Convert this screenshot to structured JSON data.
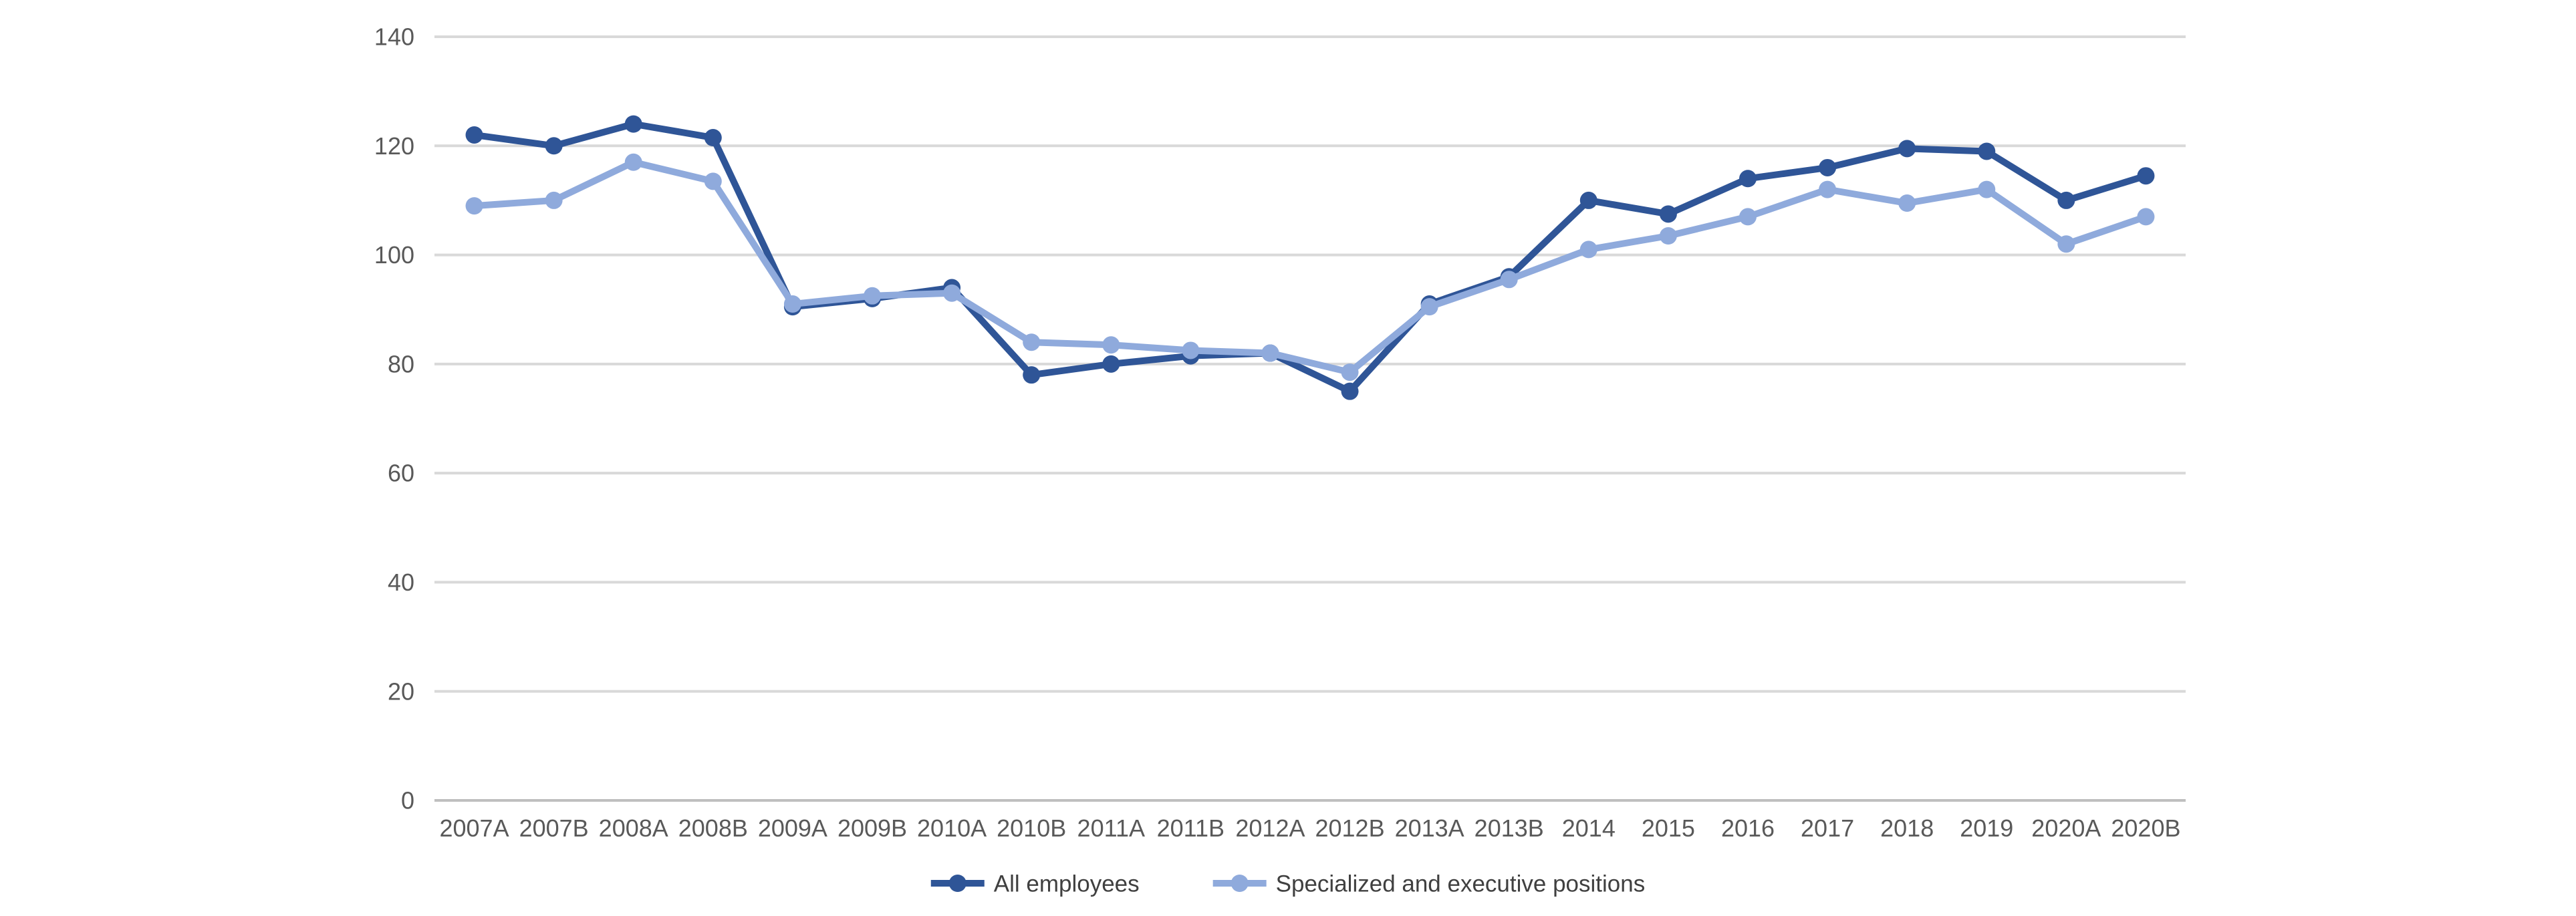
{
  "chart_data": {
    "type": "line",
    "title": "",
    "xlabel": "",
    "ylabel": "",
    "categories": [
      "2007A",
      "2007B",
      "2008A",
      "2008B",
      "2009A",
      "2009B",
      "2010A",
      "2010B",
      "2011A",
      "2011B",
      "2012A",
      "2012B",
      "2013A",
      "2013B",
      "2014",
      "2015",
      "2016",
      "2017",
      "2018",
      "2019",
      "2020A",
      "2020B"
    ],
    "series": [
      {
        "name": "All employees",
        "color": "#2F5597",
        "values": [
          122,
          120,
          124,
          121.5,
          90.5,
          92,
          94,
          78,
          80,
          81.5,
          82,
          75,
          91,
          96,
          110,
          107.5,
          114,
          116,
          119.5,
          119,
          110,
          114.5
        ]
      },
      {
        "name": "Specialized and executive positions",
        "color": "#8FAADC",
        "values": [
          109,
          110,
          117,
          113.5,
          91,
          92.5,
          93,
          84,
          83.5,
          82.5,
          82,
          78.5,
          90.5,
          95.5,
          101,
          103.5,
          107,
          112,
          109.5,
          112,
          102,
          107
        ]
      }
    ],
    "y_axis": {
      "min": 0,
      "max": 140,
      "tick_step": 20,
      "ticks": [
        0,
        20,
        40,
        60,
        80,
        100,
        120,
        140
      ]
    },
    "grid": true,
    "legend_position": "bottom",
    "marker": "circle"
  },
  "colors": {
    "background": "#FFFFFF",
    "gridline": "#D9D9D9",
    "axis_line": "#BFBFBF",
    "tick_text": "#595959",
    "legend_text": "#404040"
  }
}
